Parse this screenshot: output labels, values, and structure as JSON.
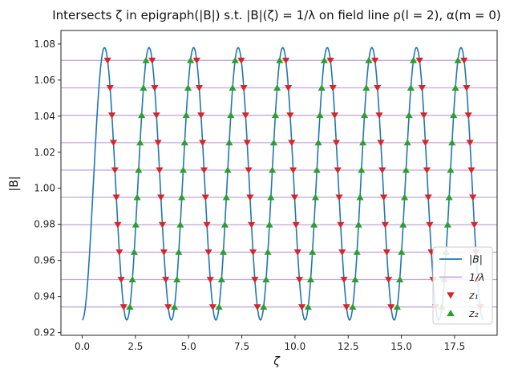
{
  "chart_data": {
    "type": "line",
    "title": "Intersects ζ in epigraph(|B|) s.t. |B|(ζ) = 1/λ on field line ρ(l = 2), α(m = 0)",
    "xlabel": "ζ",
    "ylabel": "|B|",
    "xlim": [
      -1.0,
      19.5
    ],
    "ylim": [
      0.9185,
      1.0875
    ],
    "grid": false,
    "legend_position": "lower-right",
    "xticks": [
      "0.0",
      "2.5",
      "5.0",
      "7.5",
      "10.0",
      "12.5",
      "15.0",
      "17.5"
    ],
    "xtick_values": [
      0,
      2.5,
      5,
      7.5,
      10,
      12.5,
      15,
      17.5
    ],
    "yticks": [
      "0.92",
      "0.94",
      "0.96",
      "0.98",
      "1.00",
      "1.02",
      "1.04",
      "1.06",
      "1.08"
    ],
    "ytick_values": [
      0.92,
      0.94,
      0.96,
      0.98,
      1.0,
      1.02,
      1.04,
      1.06,
      1.08
    ],
    "series": [
      {
        "name": "|B|",
        "kind": "line",
        "color": "#1f77b4",
        "model": {
          "x_start": 0.0,
          "x_end": 18.85,
          "center": 1.0025,
          "amplitude": 0.0755,
          "period": 2.0944,
          "phase_x_of_minimum": 0.0
        }
      },
      {
        "name": "1/λ",
        "kind": "hlines",
        "color": "#c4a8e0",
        "values": [
          0.9342,
          0.9494,
          0.9646,
          0.9798,
          0.995,
          1.0101,
          1.0253,
          1.0405,
          1.0557,
          1.0709
        ]
      },
      {
        "name": "z₁",
        "kind": "markers",
        "marker": "triangle-down",
        "color": "#d62728"
      },
      {
        "name": "z₂",
        "kind": "markers",
        "marker": "triangle-up",
        "color": "#2ca02c"
      }
    ]
  },
  "legend": {
    "items": [
      {
        "label": "|B|",
        "color": "#1f77b4",
        "kind": "line"
      },
      {
        "label": "1/λ",
        "color": "#c4a8e0",
        "kind": "line"
      },
      {
        "label": "z₁",
        "color": "#d62728",
        "kind": "triangle-down"
      },
      {
        "label": "z₂",
        "color": "#2ca02c",
        "kind": "triangle-up"
      }
    ]
  }
}
